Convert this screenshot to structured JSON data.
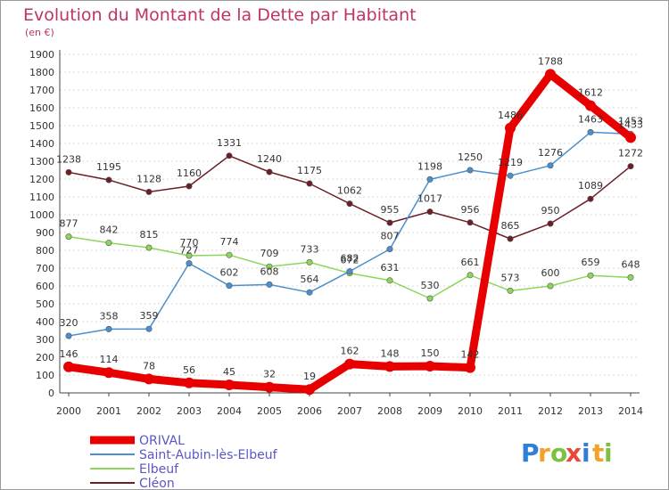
{
  "chart_data": {
    "type": "line",
    "title": "Evolution du Montant de la Dette par Habitant",
    "subtitle": "(en €)",
    "xlabel": "",
    "ylabel": "",
    "categories": [
      "2000",
      "2001",
      "2002",
      "2003",
      "2004",
      "2005",
      "2006",
      "2007",
      "2008",
      "2009",
      "2010",
      "2011",
      "2012",
      "2013",
      "2014"
    ],
    "ylim": [
      0,
      1900
    ],
    "yticks": [
      0,
      100,
      200,
      300,
      400,
      500,
      600,
      700,
      800,
      900,
      1000,
      1100,
      1200,
      1300,
      1400,
      1500,
      1600,
      1700,
      1800,
      1900
    ],
    "grid": true,
    "legend_position": "bottom-left",
    "series": [
      {
        "name": "Cléon",
        "color": "#6b1e26",
        "values": [
          1238,
          1195,
          1128,
          1160,
          1331,
          1240,
          1175,
          1062,
          955,
          1017,
          956,
          865,
          950,
          1089,
          1272
        ]
      },
      {
        "name": "Elbeuf",
        "color": "#8ed65a",
        "values": [
          877,
          842,
          815,
          770,
          774,
          709,
          733,
          672,
          631,
          530,
          661,
          573,
          600,
          659,
          648
        ]
      },
      {
        "name": "Saint-Aubin-lès-Elbeuf",
        "color": "#4a90d0",
        "values": [
          320,
          358,
          359,
          727,
          602,
          608,
          564,
          682,
          807,
          1198,
          1250,
          1219,
          1276,
          1463,
          1453
        ]
      },
      {
        "name": "ORIVAL",
        "color": "#e80000",
        "values": [
          146,
          114,
          78,
          56,
          45,
          32,
          19,
          162,
          148,
          150,
          142,
          1486,
          1788,
          1612,
          1433
        ]
      }
    ],
    "legend_order": [
      "ORIVAL",
      "Saint-Aubin-lès-Elbeuf",
      "Elbeuf",
      "Cléon"
    ]
  },
  "logo": {
    "letters": [
      "P",
      "r",
      "o",
      "x",
      "i",
      "t",
      "i"
    ],
    "colors": [
      "#2f7fd8",
      "#f2a22a",
      "#7cc142",
      "#e8473a",
      "#2f7fd8",
      "#f2a22a",
      "#7cc142"
    ]
  }
}
